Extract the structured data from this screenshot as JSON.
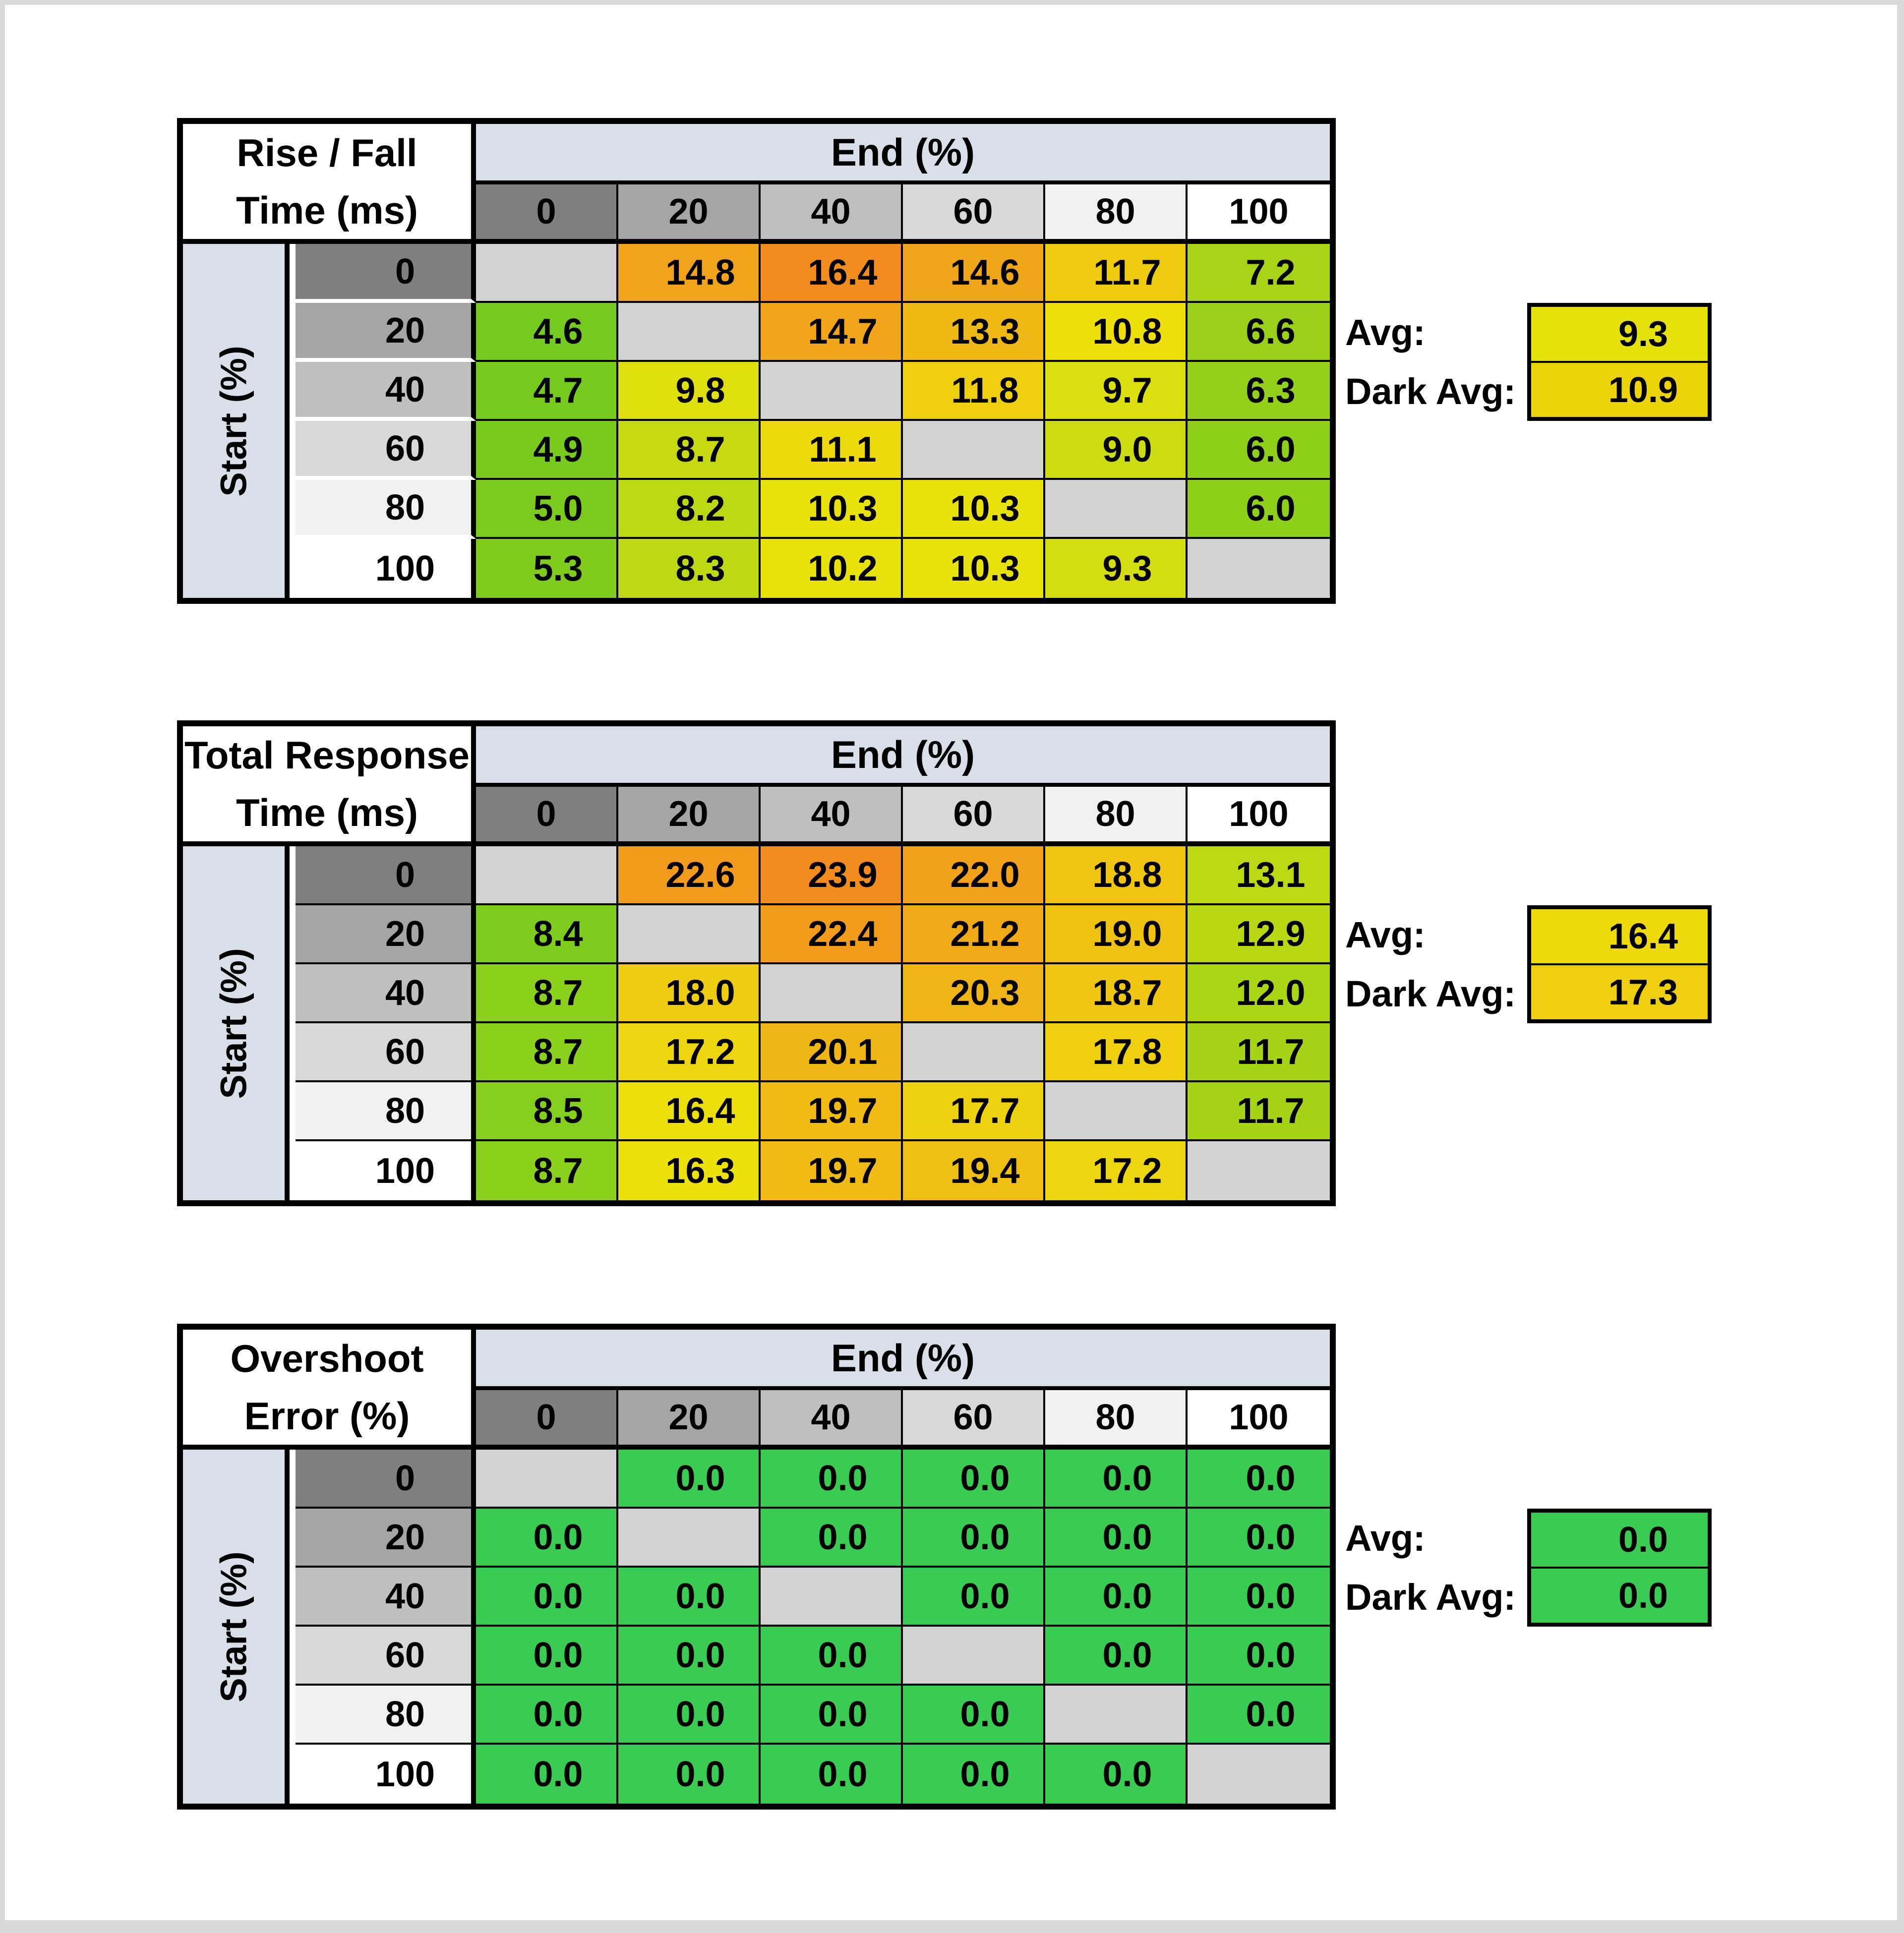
{
  "page": {
    "background": "#ffffff",
    "edge_color": "#d9d9d9"
  },
  "shared": {
    "end_header": "End (%)",
    "start_label": "Start (%)",
    "avg_label": "Avg:",
    "dark_avg_label": "Dark Avg:",
    "col_headers": [
      "0",
      "20",
      "40",
      "60",
      "80",
      "100"
    ],
    "row_headers": [
      "0",
      "20",
      "40",
      "60",
      "80",
      "100"
    ],
    "header_fills": [
      "#7f7f7f",
      "#a5a5a5",
      "#bfbfbf",
      "#d8d8d8",
      "#f1f1f1",
      "#ffffff"
    ],
    "band_fill": "#d8dfe8",
    "blank_fill": "#d2d2d2",
    "grid_line_color": "#000000"
  },
  "tables": [
    {
      "title_line1": "Rise / Fall",
      "title_line2": "Time (ms)",
      "avg_fill": "#e4e10b",
      "dark_avg_fill": "#edd40a",
      "fills": [
        [
          null,
          "#f1a31a",
          "#f28c1f",
          "#f0a619",
          "#eecb10",
          "#a7d416"
        ],
        [
          "#74ca1e",
          null,
          "#f1a519",
          "#efb915",
          "#edde0c",
          "#9ad118"
        ],
        [
          "#75ca1d",
          "#dedf0d",
          null,
          "#eecf0f",
          "#dcdf0e",
          "#94d019"
        ],
        [
          "#78cb1d",
          "#c7da11",
          "#eed90d",
          null,
          "#cddc10",
          "#8ecf1a"
        ],
        [
          "#7acb1d",
          "#bcd812",
          "#e9e10c",
          "#e9e10c",
          null,
          "#8ecf1a"
        ],
        [
          "#7fcc1c",
          "#bed912",
          "#e7e10c",
          "#e9e10c",
          "#d4dd0f",
          null
        ]
      ]
    },
    {
      "title_line1": "Total Response",
      "title_line2": "Time (ms)",
      "avg_fill": "#edd90c",
      "dark_avg_fill": "#eecf0f",
      "fills": [
        [
          null,
          "#f19a1c",
          "#f28c1f",
          "#f1a11a",
          "#efc512",
          "#bcd812"
        ],
        [
          "#7ecc1e",
          null,
          "#f19d1b",
          "#f0aa18",
          "#efc212",
          "#b9d813"
        ],
        [
          "#8bd01c",
          "#eecd10",
          null,
          "#f0b416",
          "#efc612",
          "#aad515"
        ],
        [
          "#8bd01c",
          "#eed60e",
          "#f0b615",
          null,
          "#eed00f",
          "#a5d416"
        ],
        [
          "#84ce1d",
          "#eddf0c",
          "#efbb14",
          "#eed10f",
          null,
          "#a5d416"
        ],
        [
          "#8bd01c",
          "#ede10b",
          "#efbb14",
          "#efbe13",
          "#eed60e",
          null
        ]
      ]
    },
    {
      "title_line1": "Overshoot",
      "title_line2": "Error (%)",
      "avg_fill": "#3acb52",
      "dark_avg_fill": "#3acb52",
      "fills": [
        [
          null,
          "#3acb52",
          "#3acb52",
          "#3acb52",
          "#3acb52",
          "#3acb52"
        ],
        [
          "#3acb52",
          null,
          "#3acb52",
          "#3acb52",
          "#3acb52",
          "#3acb52"
        ],
        [
          "#3acb52",
          "#3acb52",
          null,
          "#3acb52",
          "#3acb52",
          "#3acb52"
        ],
        [
          "#3acb52",
          "#3acb52",
          "#3acb52",
          null,
          "#3acb52",
          "#3acb52"
        ],
        [
          "#3acb52",
          "#3acb52",
          "#3acb52",
          "#3acb52",
          null,
          "#3acb52"
        ],
        [
          "#3acb52",
          "#3acb52",
          "#3acb52",
          "#3acb52",
          "#3acb52",
          null
        ]
      ]
    }
  ],
  "chart_data": [
    {
      "type": "heatmap",
      "title": "Rise / Fall Time (ms)",
      "x_label": "End (%)",
      "y_label": "Start (%)",
      "x": [
        0,
        20,
        40,
        60,
        80,
        100
      ],
      "y": [
        0,
        20,
        40,
        60,
        80,
        100
      ],
      "values": [
        [
          null,
          14.8,
          16.4,
          14.6,
          11.7,
          7.2
        ],
        [
          4.6,
          null,
          14.7,
          13.3,
          10.8,
          6.6
        ],
        [
          4.7,
          9.8,
          null,
          11.8,
          9.7,
          6.3
        ],
        [
          4.9,
          8.7,
          11.1,
          null,
          9.0,
          6.0
        ],
        [
          5.0,
          8.2,
          10.3,
          10.3,
          null,
          6.0
        ],
        [
          5.3,
          8.3,
          10.2,
          10.3,
          9.3,
          null
        ]
      ],
      "avg": 9.3,
      "dark_avg": 10.9
    },
    {
      "type": "heatmap",
      "title": "Total Response Time (ms)",
      "x_label": "End (%)",
      "y_label": "Start (%)",
      "x": [
        0,
        20,
        40,
        60,
        80,
        100
      ],
      "y": [
        0,
        20,
        40,
        60,
        80,
        100
      ],
      "values": [
        [
          null,
          22.6,
          23.9,
          22.0,
          18.8,
          13.1
        ],
        [
          8.4,
          null,
          22.4,
          21.2,
          19.0,
          12.9
        ],
        [
          8.7,
          18.0,
          null,
          20.3,
          18.7,
          12.0
        ],
        [
          8.7,
          17.2,
          20.1,
          null,
          17.8,
          11.7
        ],
        [
          8.5,
          16.4,
          19.7,
          17.7,
          null,
          11.7
        ],
        [
          8.7,
          16.3,
          19.7,
          19.4,
          17.2,
          null
        ]
      ],
      "avg": 16.4,
      "dark_avg": 17.3
    },
    {
      "type": "heatmap",
      "title": "Overshoot Error (%)",
      "x_label": "End (%)",
      "y_label": "Start (%)",
      "x": [
        0,
        20,
        40,
        60,
        80,
        100
      ],
      "y": [
        0,
        20,
        40,
        60,
        80,
        100
      ],
      "values": [
        [
          null,
          0.0,
          0.0,
          0.0,
          0.0,
          0.0
        ],
        [
          0.0,
          null,
          0.0,
          0.0,
          0.0,
          0.0
        ],
        [
          0.0,
          0.0,
          null,
          0.0,
          0.0,
          0.0
        ],
        [
          0.0,
          0.0,
          0.0,
          null,
          0.0,
          0.0
        ],
        [
          0.0,
          0.0,
          0.0,
          0.0,
          null,
          0.0
        ],
        [
          0.0,
          0.0,
          0.0,
          0.0,
          0.0,
          null
        ]
      ],
      "avg": 0.0,
      "dark_avg": 0.0
    }
  ]
}
